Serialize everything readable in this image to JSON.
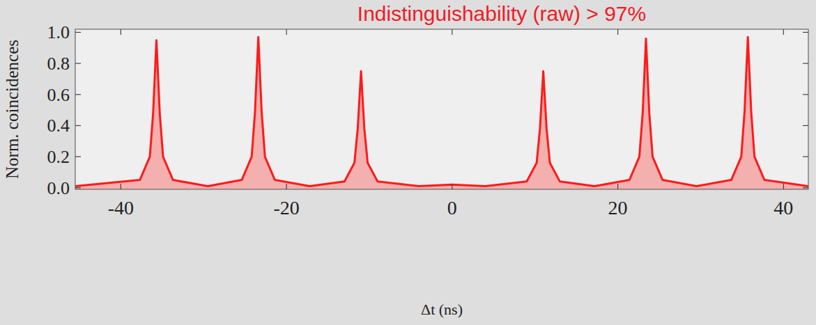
{
  "chart_data": {
    "type": "area",
    "title": "Indistinguishability (raw) > 97%",
    "x_label": "Δt (ns)",
    "y_label": "Norm. coincidences",
    "color": "#ff1a1a",
    "x": [
      -45.5,
      -37.7,
      -36.5,
      -36.1,
      -35.7,
      -35.3,
      -34.9,
      -33.7,
      -29.5,
      -25.4,
      -24.2,
      -23.8,
      -23.4,
      -23.0,
      -22.6,
      -21.4,
      -17.2,
      -13,
      -11.8,
      -11.4,
      -11,
      -10.6,
      -10.2,
      -9,
      -4,
      0,
      4,
      9,
      10.2,
      10.6,
      11,
      11.4,
      11.8,
      13,
      17.2,
      21.4,
      22.6,
      23.0,
      23.4,
      23.8,
      24.2,
      25.4,
      29.5,
      33.7,
      34.9,
      35.3,
      35.7,
      36.1,
      36.5,
      37.7,
      43
    ],
    "values": [
      0.01,
      0.05,
      0.2,
      0.48,
      0.95,
      0.48,
      0.2,
      0.05,
      0.01,
      0.05,
      0.2,
      0.49,
      0.97,
      0.49,
      0.2,
      0.05,
      0.01,
      0.04,
      0.16,
      0.38,
      0.75,
      0.38,
      0.16,
      0.04,
      0.01,
      0.02,
      0.01,
      0.04,
      0.16,
      0.38,
      0.75,
      0.38,
      0.16,
      0.04,
      0.01,
      0.05,
      0.2,
      0.48,
      0.96,
      0.48,
      0.2,
      0.05,
      0.01,
      0.05,
      0.2,
      0.49,
      0.97,
      0.49,
      0.2,
      0.05,
      0.01
    ],
    "xlim": [
      -45.5,
      43
    ],
    "ylim": [
      -0.01,
      1.02
    ],
    "xticks": [
      -40,
      -20,
      0,
      20,
      40
    ],
    "yticks": [
      {
        "value": 0,
        "label": "0.0"
      },
      {
        "value": 0.2,
        "label": "0.2"
      },
      {
        "value": 0.4,
        "label": "0.4"
      },
      {
        "value": 0.6,
        "label": "0.6"
      },
      {
        "value": 0.8,
        "label": "0.8"
      },
      {
        "value": 1,
        "label": "1.0"
      }
    ],
    "grid": false
  }
}
